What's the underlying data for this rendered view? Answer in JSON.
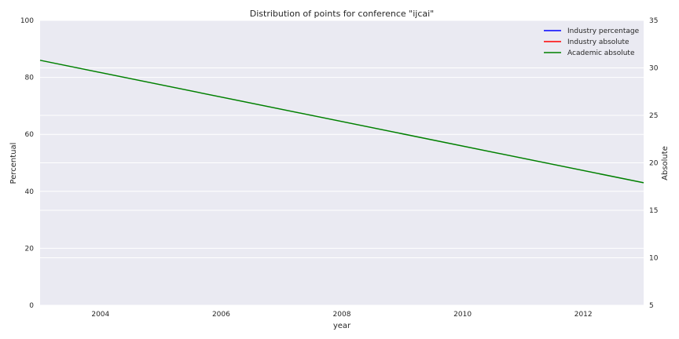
{
  "chart_data": {
    "type": "line",
    "title": "Distribution of points for conference \"ijcai\"",
    "xlabel": "year",
    "ylabel_left": "Percentual",
    "ylabel_right": "Absolute",
    "xlim": [
      2003,
      2013
    ],
    "ylim_left": [
      0,
      100
    ],
    "ylim_right": [
      5,
      35
    ],
    "x_ticks": [
      "2004",
      "2006",
      "2008",
      "2010",
      "2012"
    ],
    "y_left_ticks": [
      "0",
      "20",
      "40",
      "60",
      "80",
      "100"
    ],
    "y_right_ticks": [
      "5",
      "10",
      "15",
      "20",
      "25",
      "30",
      "35"
    ],
    "grid": true,
    "legend_position": "top-right",
    "series": [
      {
        "name": "Industry percentage",
        "color": "#0000ff",
        "axis": "left",
        "x": [],
        "y": []
      },
      {
        "name": "Industry absolute",
        "color": "#ff0000",
        "axis": "right",
        "x": [],
        "y": []
      },
      {
        "name": "Academic absolute",
        "color": "#008000",
        "axis": "right",
        "x": [
          2003,
          2013
        ],
        "y": [
          30.8,
          17.9
        ]
      }
    ]
  }
}
